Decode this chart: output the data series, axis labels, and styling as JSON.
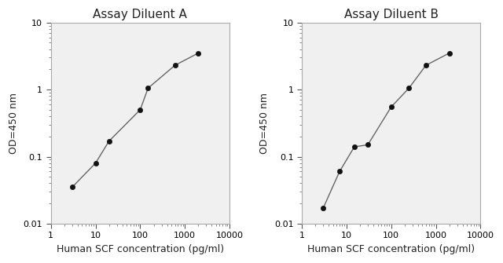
{
  "chart_a": {
    "title": "Assay Diluent A",
    "x": [
      3,
      10,
      20,
      100,
      150,
      600,
      2000
    ],
    "y": [
      0.035,
      0.08,
      0.17,
      0.5,
      1.05,
      2.3,
      3.5
    ]
  },
  "chart_b": {
    "title": "Assay Diluent B",
    "x": [
      3,
      7,
      15,
      30,
      100,
      250,
      600,
      2000
    ],
    "y": [
      0.017,
      0.06,
      0.14,
      0.15,
      0.55,
      1.05,
      2.3,
      3.5
    ]
  },
  "xlabel": "Human SCF concentration (pg/ml)",
  "ylabel": "OD=450 nm",
  "xlim": [
    1,
    10000
  ],
  "ylim": [
    0.01,
    10
  ],
  "xticks": [
    1,
    10,
    100,
    1000,
    10000
  ],
  "xtick_labels": [
    "1",
    "10",
    "100",
    "1000",
    "10000"
  ],
  "yticks": [
    0.01,
    0.1,
    1,
    10
  ],
  "ytick_labels": [
    "0.01",
    "0.1",
    "1",
    "10"
  ],
  "line_color": "#666666",
  "marker_color": "#111111",
  "marker_size": 4.5,
  "title_fontsize": 11,
  "label_fontsize": 9,
  "tick_fontsize": 8,
  "background_color": "#ffffff",
  "plot_bg_color": "#f0f0f0"
}
